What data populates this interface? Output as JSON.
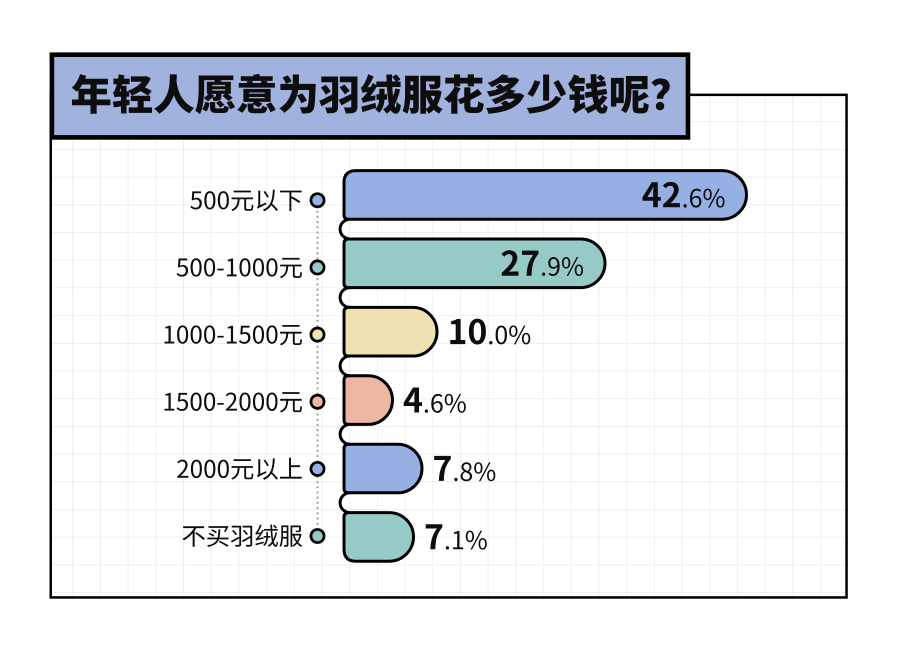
{
  "title": {
    "text": "年轻人愿意为羽绒服花多少钱呢？"
  },
  "chart_data": {
    "type": "bar",
    "orientation": "horizontal",
    "title": "年轻人愿意为羽绒服花多少钱呢？",
    "categories": [
      "500元以下",
      "500-1000元",
      "1000-1500元",
      "1500-2000元",
      "2000元以上",
      "不买羽绒服"
    ],
    "values": [
      42.6,
      27.9,
      10.0,
      4.6,
      7.8,
      7.1
    ],
    "value_labels": [
      "42.6%",
      "27.9%",
      "10.0%",
      "4.6%",
      "7.8%",
      "7.1%"
    ],
    "unit": "%",
    "colors": [
      "#97b0e3",
      "#95cac6",
      "#eee3b0",
      "#eeb7a4",
      "#97b0e3",
      "#95cac6"
    ],
    "xlim": [
      0,
      45
    ],
    "legend": null,
    "grid": "on"
  },
  "style": {
    "background": "#ffffff",
    "outline": "#000000",
    "text": "#0d0d0d",
    "title_box_fill": "#a1b2df",
    "grid_line": "#e9e9e9",
    "dotted_line": "#a6a18d"
  }
}
